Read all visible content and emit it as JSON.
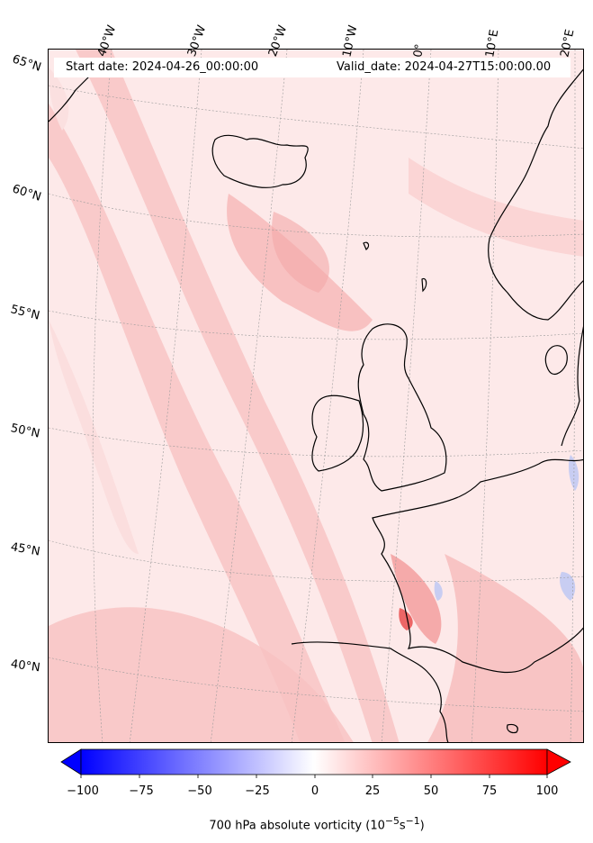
{
  "info": {
    "start_date": "Start date: 2024-04-26_00:00:00",
    "valid_date": "Valid_date: 2024-04-27T15:00:00.00"
  },
  "longitude_labels": [
    "40°W",
    "30°W",
    "20°W",
    "10°W",
    "0°",
    "10°E",
    "20°E"
  ],
  "latitude_labels": [
    "65°N",
    "60°N",
    "55°N",
    "50°N",
    "45°N",
    "40°N"
  ],
  "colorbar": {
    "label": "700 hPa absolute vorticity (10",
    "label_exp1": "−5",
    "label_mid": "s",
    "label_exp2": "−1",
    "label_end": ")",
    "ticks": [
      "−100",
      "−75",
      "−50",
      "−25",
      "0",
      "25",
      "50",
      "75",
      "100"
    ],
    "min": -100,
    "max": 100,
    "colormap": "bwr",
    "extend": "both"
  },
  "colors": {
    "land_outline": "#000000",
    "gridline": "#9a9a9a",
    "field_background": "#fde9e9",
    "field_band": "#f8c2c2",
    "field_strong": "#f06060",
    "field_negative": "#d8dcf5"
  }
}
